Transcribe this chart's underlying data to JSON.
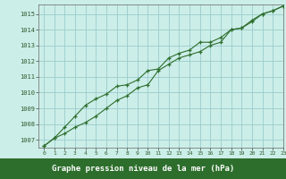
{
  "title": "",
  "xlabel": "Graphe pression niveau de la mer (hPa)",
  "ylabel": "",
  "background_color": "#cceee8",
  "plot_bg_color": "#cceee8",
  "grid_color": "#99cccc",
  "line_color": "#2d6e2d",
  "marker_color": "#2d6e2d",
  "label_bar_color": "#2d6e2d",
  "label_text_color": "#ffffff",
  "axis_text_color": "#2d5a2d",
  "xlim": [
    -0.5,
    23
  ],
  "ylim": [
    1006.5,
    1015.6
  ],
  "yticks": [
    1007,
    1008,
    1009,
    1010,
    1011,
    1012,
    1013,
    1014,
    1015
  ],
  "xticks": [
    0,
    1,
    2,
    3,
    4,
    5,
    6,
    7,
    8,
    9,
    10,
    11,
    12,
    13,
    14,
    15,
    16,
    17,
    18,
    19,
    20,
    21,
    22,
    23
  ],
  "series1_x": [
    0,
    1,
    2,
    3,
    4,
    5,
    6,
    7,
    8,
    9,
    10,
    11,
    12,
    13,
    14,
    15,
    16,
    17,
    18,
    19,
    20,
    21,
    22,
    23
  ],
  "series1_y": [
    1006.6,
    1007.1,
    1007.4,
    1007.8,
    1008.1,
    1008.5,
    1009.0,
    1009.5,
    1009.8,
    1010.3,
    1010.5,
    1011.4,
    1011.8,
    1012.2,
    1012.4,
    1012.6,
    1013.0,
    1013.2,
    1014.0,
    1014.1,
    1014.5,
    1015.0,
    1015.2,
    1015.5
  ],
  "series2_x": [
    0,
    1,
    2,
    3,
    4,
    5,
    6,
    7,
    8,
    9,
    10,
    11,
    12,
    13,
    14,
    15,
    16,
    17,
    18,
    19,
    20,
    21,
    22,
    23
  ],
  "series2_y": [
    1006.6,
    1007.1,
    1007.8,
    1008.5,
    1009.2,
    1009.6,
    1009.9,
    1010.4,
    1010.5,
    1010.8,
    1011.4,
    1011.5,
    1012.2,
    1012.5,
    1012.7,
    1013.2,
    1013.2,
    1013.5,
    1014.0,
    1014.1,
    1014.6,
    1015.0,
    1015.2,
    1015.5
  ]
}
